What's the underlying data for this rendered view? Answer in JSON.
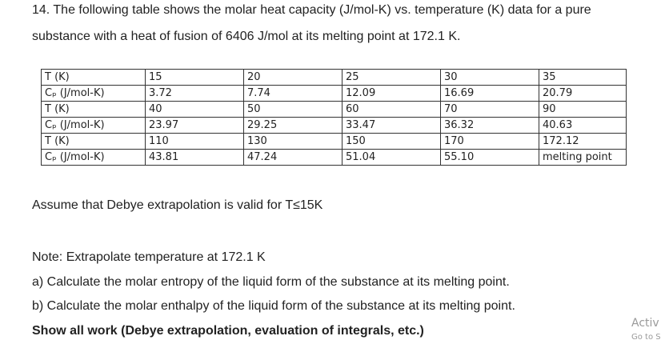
{
  "question": {
    "line1": "14. The following table shows the molar heat capacity (J/mol-K) vs. temperature (K) data for a pure",
    "line2": "substance with a heat of fusion of 6406 J/mol at its melting point at 172.1 K."
  },
  "table": {
    "rows": [
      [
        "T (K)",
        "15",
        "20",
        "25",
        "30",
        "35"
      ],
      [
        "Cₚ (J/mol-K)",
        "3.72",
        "7.74",
        "12.09",
        "16.69",
        "20.79"
      ],
      [
        "T (K)",
        "40",
        "50",
        "60",
        "70",
        "90"
      ],
      [
        "Cₚ (J/mol-K)",
        "23.97",
        "29.25",
        "33.47",
        "36.32",
        "40.63"
      ],
      [
        "T (K)",
        "110",
        "130",
        "150",
        "170",
        "172.12"
      ],
      [
        "Cₚ (J/mol-K)",
        "43.81",
        "47.24",
        "51.04",
        "55.10",
        "melting point"
      ]
    ]
  },
  "assumption": "Assume that Debye extrapolation is valid for T≤15K",
  "note": "Note: Extrapolate temperature at 172.1 K",
  "part_a": "a) Calculate the molar entropy of the liquid form of the substance at its melting point.",
  "part_b": "b) Calculate the molar enthalpy of the liquid form of the substance at its melting point.",
  "instruction": "Show all work (Debye extrapolation, evaluation of integrals, etc.)",
  "watermark": {
    "line1": "Activ",
    "line2": "Go to S"
  }
}
